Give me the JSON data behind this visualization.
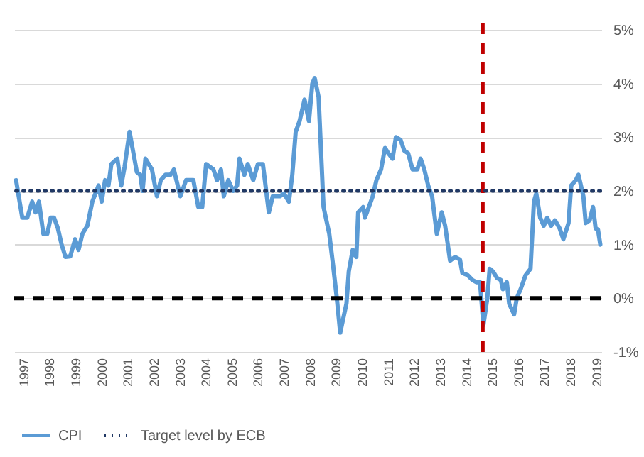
{
  "chart_data": {
    "type": "line",
    "legend": "bottom",
    "grid": "y",
    "marker": "none",
    "xlim": [
      1996.65,
      2019.2
    ],
    "xticks": [
      1997,
      1998,
      1999,
      2000,
      2001,
      2002,
      2003,
      2004,
      2005,
      2006,
      2007,
      2008,
      2009,
      2010,
      2011,
      2012,
      2013,
      2014,
      2015,
      2016,
      2017,
      2018,
      2019
    ],
    "ylim": [
      -1,
      5
    ],
    "yticks": [
      {
        "value": -1,
        "label": "-1%"
      },
      {
        "value": 0,
        "label": "0%"
      },
      {
        "value": 1,
        "label": "1%"
      },
      {
        "value": 2,
        "label": "2%"
      },
      {
        "value": 3,
        "label": "3%"
      },
      {
        "value": 4,
        "label": "4%"
      },
      {
        "value": 5,
        "label": "5%"
      }
    ],
    "series": [
      {
        "name": "CPI",
        "color": "#5b9bd5",
        "line_style": "solid",
        "x": [
          1996.72,
          1996.96,
          1997.15,
          1997.34,
          1997.47,
          1997.6,
          1997.77,
          1997.92,
          1998.05,
          1998.18,
          1998.33,
          1998.47,
          1998.62,
          1998.8,
          1998.99,
          1999.12,
          1999.27,
          1999.46,
          1999.65,
          1999.89,
          2000.01,
          2000.14,
          2000.27,
          2000.38,
          2000.61,
          2000.76,
          2000.89,
          2001.08,
          2001.36,
          2001.49,
          2001.58,
          2001.69,
          2001.94,
          2002.13,
          2002.28,
          2002.46,
          2002.65,
          2002.78,
          2003.03,
          2003.25,
          2003.53,
          2003.72,
          2003.87,
          2004.02,
          2004.3,
          2004.44,
          2004.59,
          2004.7,
          2004.87,
          2005.06,
          2005.21,
          2005.3,
          2005.49,
          2005.62,
          2005.83,
          2006.01,
          2006.2,
          2006.43,
          2006.58,
          2006.86,
          2007.01,
          2007.2,
          2007.33,
          2007.46,
          2007.61,
          2007.8,
          2007.97,
          2008.1,
          2008.19,
          2008.34,
          2008.53,
          2008.75,
          2008.9,
          2009.04,
          2009.17,
          2009.32,
          2009.41,
          2009.5,
          2009.65,
          2009.79,
          2009.86,
          2010.05,
          2010.12,
          2010.27,
          2010.42,
          2010.56,
          2010.74,
          2010.89,
          2011.02,
          2011.18,
          2011.31,
          2011.49,
          2011.63,
          2011.78,
          2011.95,
          2012.13,
          2012.26,
          2012.4,
          2012.55,
          2012.7,
          2012.88,
          2013.07,
          2013.2,
          2013.39,
          2013.58,
          2013.77,
          2013.86,
          2014.07,
          2014.25,
          2014.4,
          2014.54,
          2014.67,
          2014.82,
          2014.91,
          2015.04,
          2015.19,
          2015.34,
          2015.42,
          2015.57,
          2015.66,
          2015.85,
          2015.95,
          2016.1,
          2016.29,
          2016.48,
          2016.61,
          2016.7,
          2016.85,
          2016.99,
          2017.12,
          2017.27,
          2017.42,
          2017.6,
          2017.74,
          2017.94,
          2018.04,
          2018.22,
          2018.32,
          2018.51,
          2018.6,
          2018.75,
          2018.88,
          2018.98,
          2019.07,
          2019.16
        ],
        "values": [
          2.2,
          1.5,
          1.5,
          1.8,
          1.6,
          1.8,
          1.2,
          1.2,
          1.5,
          1.5,
          1.3,
          1.0,
          0.77,
          0.78,
          1.1,
          0.9,
          1.2,
          1.35,
          1.8,
          2.1,
          1.8,
          2.2,
          2.1,
          2.5,
          2.6,
          2.1,
          2.45,
          3.1,
          2.35,
          2.3,
          2.0,
          2.6,
          2.4,
          1.9,
          2.2,
          2.3,
          2.3,
          2.4,
          1.9,
          2.2,
          2.2,
          1.7,
          1.7,
          2.5,
          2.4,
          2.2,
          2.4,
          1.9,
          2.2,
          2.0,
          2.1,
          2.6,
          2.3,
          2.5,
          2.2,
          2.5,
          2.5,
          1.6,
          1.9,
          1.9,
          1.95,
          1.8,
          2.3,
          3.1,
          3.3,
          3.7,
          3.3,
          4.0,
          4.1,
          3.75,
          1.7,
          1.2,
          0.6,
          0.0,
          -0.64,
          -0.3,
          -0.1,
          0.5,
          0.9,
          0.77,
          1.6,
          1.7,
          1.5,
          1.7,
          1.9,
          2.2,
          2.4,
          2.8,
          2.7,
          2.6,
          3.0,
          2.95,
          2.75,
          2.7,
          2.4,
          2.4,
          2.6,
          2.4,
          2.1,
          1.9,
          1.2,
          1.6,
          1.35,
          0.7,
          0.77,
          0.72,
          0.47,
          0.43,
          0.34,
          0.3,
          0.3,
          -0.5,
          0.0,
          0.55,
          0.5,
          0.38,
          0.34,
          0.17,
          0.3,
          -0.1,
          -0.3,
          0.0,
          0.17,
          0.43,
          0.55,
          1.8,
          1.95,
          1.5,
          1.35,
          1.5,
          1.35,
          1.45,
          1.3,
          1.1,
          1.4,
          2.1,
          2.2,
          2.3,
          1.9,
          1.4,
          1.45,
          1.7,
          1.3,
          1.28,
          1.0
        ]
      },
      {
        "name": "Target level by ECB",
        "color": "#203864",
        "line_style": "dotted",
        "x": [
          1996.72,
          2019.16
        ],
        "values": [
          2,
          2
        ]
      }
    ],
    "ref_lines": [
      {
        "axis": "y",
        "value": 0,
        "color": "#000000",
        "line_style": "dashed"
      },
      {
        "axis": "x",
        "value": 2014.65,
        "color": "#c00000",
        "line_style": "dashed"
      }
    ]
  }
}
